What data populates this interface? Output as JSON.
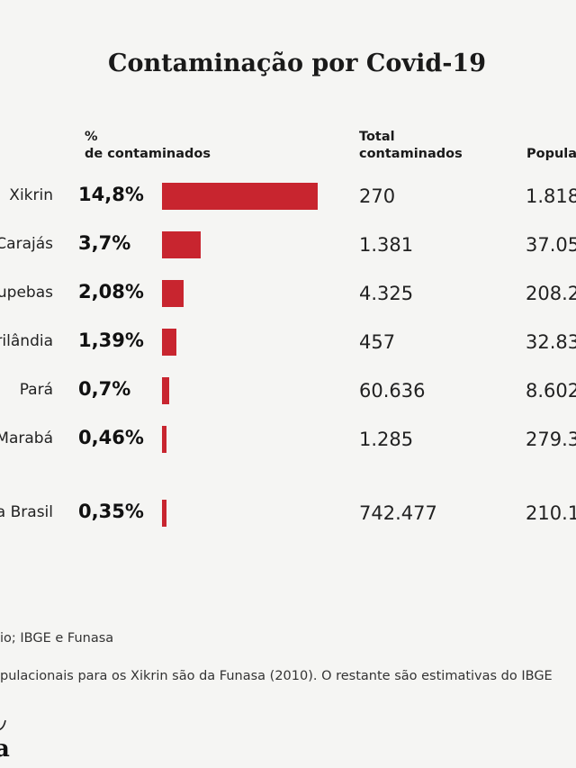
{
  "chart_data": {
    "type": "table",
    "title": "Contaminação por Covid-19",
    "columns": {
      "pct_line1": "%",
      "pct_line2": "de contaminados",
      "total_line1": "Total",
      "total_line2": "contaminados",
      "pop": "Popula"
    },
    "rows": [
      {
        "label": "Xikrin",
        "pct_label": "14,8%",
        "pct_value": 14.8,
        "total": "270",
        "population": "1.818"
      },
      {
        "label": "Carajás",
        "pct_label": "3,7%",
        "pct_value": 3.7,
        "total": "1.381",
        "population": "37.05"
      },
      {
        "label": "upebas",
        "pct_label": "2,08%",
        "pct_value": 2.08,
        "total": "4.325",
        "population": "208.2"
      },
      {
        "label": "rilândia",
        "pct_label": "1,39%",
        "pct_value": 1.39,
        "total": "457",
        "population": "32.83"
      },
      {
        "label": "Pará",
        "pct_label": "0,7%",
        "pct_value": 0.7,
        "total": "60.636",
        "population": "8.602"
      },
      {
        "label": "Marabá",
        "pct_label": "0,46%",
        "pct_value": 0.46,
        "total": "1.285",
        "population": "279.3"
      },
      {
        "label": "a Brasil",
        "pct_label": "0,35%",
        "pct_value": 0.35,
        "total": "742.477",
        "population": "210.1"
      }
    ],
    "bar_color": "#c8252f"
  },
  "footer": {
    "source": "io; IBGE e Funasa",
    "note": "pulacionais para os Xikrin são da Funasa (2010).  O restante são estimativas do IBGE"
  },
  "logo": {
    "text": "a"
  }
}
